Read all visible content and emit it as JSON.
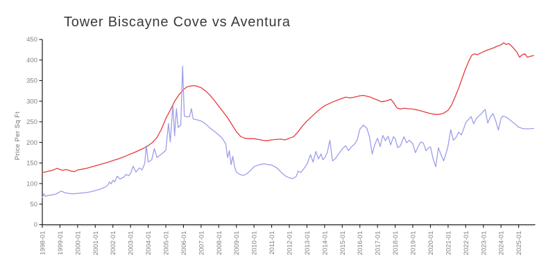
{
  "chart_data": {
    "type": "line",
    "title": "Tower Biscayne Cove vs Aventura",
    "xlabel": "",
    "ylabel": "Price Per Sq Ft",
    "xlim": [
      1998.0,
      2025.9
    ],
    "ylim": [
      0,
      450
    ],
    "grid": false,
    "legend_position": "none",
    "x_minor_ticks": "monthly",
    "xtick_labels": [
      "1998-01",
      "1999-01",
      "2000-01",
      "2001-01",
      "2002-01",
      "2003-01",
      "2004-01",
      "2005-01",
      "2006-01",
      "2007-01",
      "2008-01",
      "2009-01",
      "2010-01",
      "2011-01",
      "2012-01",
      "2013-01",
      "2014-01",
      "2015-01",
      "2016-01",
      "2017-01",
      "2018-01",
      "2019-01",
      "2020-01",
      "2021-01",
      "2022-01",
      "2023-01",
      "2024-01",
      "2025-01"
    ],
    "ytick_values": [
      0,
      50,
      100,
      150,
      200,
      250,
      300,
      350,
      400,
      450
    ],
    "axis_color": "#1a1a1a",
    "tick_label_color": "#828282",
    "series": [
      {
        "name": "Tower Biscayne Cove",
        "color": "#e8393b",
        "points": [
          [
            1998.0,
            127
          ],
          [
            1998.17,
            128
          ],
          [
            1998.33,
            130
          ],
          [
            1998.5,
            131
          ],
          [
            1998.67,
            134
          ],
          [
            1998.85,
            137
          ],
          [
            1999.0,
            134
          ],
          [
            1999.17,
            132
          ],
          [
            1999.33,
            134
          ],
          [
            1999.5,
            132
          ],
          [
            1999.67,
            130
          ],
          [
            1999.83,
            129
          ],
          [
            2000.0,
            133
          ],
          [
            2000.25,
            135
          ],
          [
            2000.5,
            137
          ],
          [
            2000.75,
            140
          ],
          [
            2001.0,
            143
          ],
          [
            2001.25,
            146
          ],
          [
            2001.5,
            149
          ],
          [
            2001.75,
            152
          ],
          [
            2002.0,
            156
          ],
          [
            2002.25,
            159
          ],
          [
            2002.5,
            163
          ],
          [
            2002.75,
            167
          ],
          [
            2003.0,
            172
          ],
          [
            2003.25,
            176
          ],
          [
            2003.5,
            181
          ],
          [
            2003.75,
            186
          ],
          [
            2004.0,
            192
          ],
          [
            2004.25,
            200
          ],
          [
            2004.5,
            212
          ],
          [
            2004.75,
            232
          ],
          [
            2005.0,
            258
          ],
          [
            2005.25,
            278
          ],
          [
            2005.5,
            300
          ],
          [
            2005.75,
            316
          ],
          [
            2006.0,
            328
          ],
          [
            2006.2,
            335
          ],
          [
            2006.4,
            337
          ],
          [
            2006.6,
            338
          ],
          [
            2006.8,
            336
          ],
          [
            2007.0,
            333
          ],
          [
            2007.25,
            325
          ],
          [
            2007.5,
            315
          ],
          [
            2007.75,
            302
          ],
          [
            2008.0,
            288
          ],
          [
            2008.25,
            274
          ],
          [
            2008.5,
            260
          ],
          [
            2008.75,
            243
          ],
          [
            2009.0,
            226
          ],
          [
            2009.25,
            214
          ],
          [
            2009.5,
            210
          ],
          [
            2009.75,
            209
          ],
          [
            2010.0,
            209
          ],
          [
            2010.25,
            207
          ],
          [
            2010.5,
            205
          ],
          [
            2010.75,
            204
          ],
          [
            2011.0,
            206
          ],
          [
            2011.25,
            207
          ],
          [
            2011.5,
            208
          ],
          [
            2011.75,
            206
          ],
          [
            2012.0,
            210
          ],
          [
            2012.25,
            214
          ],
          [
            2012.5,
            226
          ],
          [
            2012.75,
            240
          ],
          [
            2013.0,
            252
          ],
          [
            2013.25,
            262
          ],
          [
            2013.5,
            272
          ],
          [
            2013.75,
            281
          ],
          [
            2014.0,
            289
          ],
          [
            2014.25,
            294
          ],
          [
            2014.5,
            299
          ],
          [
            2014.75,
            303
          ],
          [
            2015.0,
            307
          ],
          [
            2015.2,
            310
          ],
          [
            2015.4,
            308
          ],
          [
            2015.6,
            309
          ],
          [
            2015.8,
            311
          ],
          [
            2016.0,
            313
          ],
          [
            2016.2,
            314
          ],
          [
            2016.4,
            312
          ],
          [
            2016.6,
            310
          ],
          [
            2016.8,
            306
          ],
          [
            2017.0,
            303
          ],
          [
            2017.2,
            299
          ],
          [
            2017.4,
            300
          ],
          [
            2017.6,
            302
          ],
          [
            2017.75,
            305
          ],
          [
            2017.9,
            297
          ],
          [
            2018.1,
            284
          ],
          [
            2018.3,
            281
          ],
          [
            2018.5,
            283
          ],
          [
            2018.7,
            282
          ],
          [
            2019.0,
            281
          ],
          [
            2019.25,
            279
          ],
          [
            2019.5,
            276
          ],
          [
            2019.75,
            273
          ],
          [
            2020.0,
            270
          ],
          [
            2020.25,
            268
          ],
          [
            2020.5,
            268
          ],
          [
            2020.75,
            271
          ],
          [
            2021.0,
            278
          ],
          [
            2021.2,
            291
          ],
          [
            2021.4,
            311
          ],
          [
            2021.6,
            332
          ],
          [
            2021.8,
            356
          ],
          [
            2022.0,
            380
          ],
          [
            2022.2,
            400
          ],
          [
            2022.35,
            412
          ],
          [
            2022.5,
            415
          ],
          [
            2022.65,
            413
          ],
          [
            2022.8,
            416
          ],
          [
            2023.0,
            420
          ],
          [
            2023.2,
            424
          ],
          [
            2023.4,
            427
          ],
          [
            2023.6,
            430
          ],
          [
            2023.8,
            434
          ],
          [
            2024.0,
            437
          ],
          [
            2024.15,
            442
          ],
          [
            2024.3,
            438
          ],
          [
            2024.45,
            440
          ],
          [
            2024.6,
            434
          ],
          [
            2024.75,
            427
          ],
          [
            2024.9,
            419
          ],
          [
            2025.05,
            407
          ],
          [
            2025.2,
            413
          ],
          [
            2025.35,
            415
          ],
          [
            2025.5,
            407
          ],
          [
            2025.65,
            409
          ],
          [
            2025.85,
            411
          ]
        ]
      },
      {
        "name": "Aventura",
        "color": "#9d9deb",
        "points": [
          [
            1998.0,
            66
          ],
          [
            1998.08,
            75
          ],
          [
            1998.17,
            69
          ],
          [
            1998.33,
            71
          ],
          [
            1998.5,
            72
          ],
          [
            1998.75,
            74
          ],
          [
            1999.0,
            80
          ],
          [
            1999.08,
            82
          ],
          [
            1999.25,
            78
          ],
          [
            1999.5,
            76
          ],
          [
            1999.75,
            75
          ],
          [
            2000.0,
            76
          ],
          [
            2000.25,
            77
          ],
          [
            2000.5,
            78
          ],
          [
            2000.75,
            80
          ],
          [
            2001.0,
            83
          ],
          [
            2001.25,
            86
          ],
          [
            2001.5,
            90
          ],
          [
            2001.7,
            95
          ],
          [
            2001.8,
            104
          ],
          [
            2001.9,
            99
          ],
          [
            2002.0,
            108
          ],
          [
            2002.1,
            104
          ],
          [
            2002.25,
            118
          ],
          [
            2002.4,
            111
          ],
          [
            2002.6,
            115
          ],
          [
            2002.75,
            122
          ],
          [
            2002.9,
            119
          ],
          [
            2003.0,
            125
          ],
          [
            2003.15,
            142
          ],
          [
            2003.3,
            128
          ],
          [
            2003.5,
            138
          ],
          [
            2003.65,
            133
          ],
          [
            2003.8,
            148
          ],
          [
            2003.9,
            192
          ],
          [
            2004.0,
            152
          ],
          [
            2004.2,
            158
          ],
          [
            2004.35,
            185
          ],
          [
            2004.5,
            163
          ],
          [
            2004.7,
            170
          ],
          [
            2004.85,
            175
          ],
          [
            2005.0,
            181
          ],
          [
            2005.15,
            246
          ],
          [
            2005.25,
            201
          ],
          [
            2005.4,
            290
          ],
          [
            2005.5,
            216
          ],
          [
            2005.6,
            282
          ],
          [
            2005.7,
            236
          ],
          [
            2005.85,
            242
          ],
          [
            2005.95,
            385
          ],
          [
            2006.05,
            264
          ],
          [
            2006.2,
            262
          ],
          [
            2006.35,
            263
          ],
          [
            2006.45,
            282
          ],
          [
            2006.55,
            257
          ],
          [
            2006.75,
            255
          ],
          [
            2007.0,
            252
          ],
          [
            2007.25,
            245
          ],
          [
            2007.5,
            235
          ],
          [
            2007.75,
            227
          ],
          [
            2008.0,
            218
          ],
          [
            2008.2,
            210
          ],
          [
            2008.4,
            196
          ],
          [
            2008.5,
            163
          ],
          [
            2008.6,
            180
          ],
          [
            2008.7,
            146
          ],
          [
            2008.8,
            166
          ],
          [
            2008.9,
            140
          ],
          [
            2009.0,
            128
          ],
          [
            2009.2,
            122
          ],
          [
            2009.4,
            120
          ],
          [
            2009.6,
            124
          ],
          [
            2009.8,
            132
          ],
          [
            2010.0,
            141
          ],
          [
            2010.3,
            146
          ],
          [
            2010.6,
            148
          ],
          [
            2010.8,
            146
          ],
          [
            2011.0,
            145
          ],
          [
            2011.3,
            138
          ],
          [
            2011.6,
            125
          ],
          [
            2011.8,
            118
          ],
          [
            2012.0,
            114
          ],
          [
            2012.2,
            112
          ],
          [
            2012.4,
            118
          ],
          [
            2012.5,
            130
          ],
          [
            2012.65,
            127
          ],
          [
            2012.8,
            135
          ],
          [
            2013.0,
            147
          ],
          [
            2013.2,
            170
          ],
          [
            2013.35,
            152
          ],
          [
            2013.5,
            178
          ],
          [
            2013.65,
            160
          ],
          [
            2013.8,
            172
          ],
          [
            2013.9,
            158
          ],
          [
            2014.0,
            162
          ],
          [
            2014.15,
            175
          ],
          [
            2014.3,
            205
          ],
          [
            2014.45,
            155
          ],
          [
            2014.6,
            160
          ],
          [
            2014.8,
            172
          ],
          [
            2015.0,
            184
          ],
          [
            2015.2,
            192
          ],
          [
            2015.35,
            180
          ],
          [
            2015.5,
            188
          ],
          [
            2015.7,
            196
          ],
          [
            2015.85,
            206
          ],
          [
            2016.0,
            232
          ],
          [
            2016.2,
            242
          ],
          [
            2016.4,
            234
          ],
          [
            2016.55,
            213
          ],
          [
            2016.7,
            172
          ],
          [
            2016.85,
            196
          ],
          [
            2017.0,
            210
          ],
          [
            2017.15,
            190
          ],
          [
            2017.3,
            217
          ],
          [
            2017.45,
            204
          ],
          [
            2017.6,
            215
          ],
          [
            2017.75,
            194
          ],
          [
            2017.9,
            214
          ],
          [
            2018.0,
            209
          ],
          [
            2018.15,
            187
          ],
          [
            2018.3,
            192
          ],
          [
            2018.5,
            214
          ],
          [
            2018.65,
            199
          ],
          [
            2018.8,
            205
          ],
          [
            2019.0,
            197
          ],
          [
            2019.15,
            175
          ],
          [
            2019.3,
            190
          ],
          [
            2019.45,
            201
          ],
          [
            2019.6,
            198
          ],
          [
            2019.75,
            180
          ],
          [
            2019.9,
            187
          ],
          [
            2020.0,
            189
          ],
          [
            2020.15,
            160
          ],
          [
            2020.3,
            141
          ],
          [
            2020.45,
            187
          ],
          [
            2020.6,
            170
          ],
          [
            2020.75,
            155
          ],
          [
            2020.9,
            175
          ],
          [
            2021.0,
            192
          ],
          [
            2021.15,
            231
          ],
          [
            2021.3,
            205
          ],
          [
            2021.45,
            212
          ],
          [
            2021.6,
            225
          ],
          [
            2021.75,
            218
          ],
          [
            2021.9,
            235
          ],
          [
            2022.0,
            248
          ],
          [
            2022.15,
            255
          ],
          [
            2022.3,
            263
          ],
          [
            2022.45,
            245
          ],
          [
            2022.6,
            258
          ],
          [
            2022.75,
            265
          ],
          [
            2022.9,
            270
          ],
          [
            2023.0,
            276
          ],
          [
            2023.1,
            280
          ],
          [
            2023.25,
            247
          ],
          [
            2023.4,
            262
          ],
          [
            2023.55,
            270
          ],
          [
            2023.7,
            252
          ],
          [
            2023.85,
            230
          ],
          [
            2024.0,
            258
          ],
          [
            2024.1,
            264
          ],
          [
            2024.25,
            262
          ],
          [
            2024.4,
            258
          ],
          [
            2024.55,
            253
          ],
          [
            2024.7,
            248
          ],
          [
            2024.85,
            243
          ],
          [
            2025.0,
            237
          ],
          [
            2025.2,
            234
          ],
          [
            2025.4,
            233
          ],
          [
            2025.6,
            233
          ],
          [
            2025.85,
            234
          ]
        ]
      }
    ]
  }
}
